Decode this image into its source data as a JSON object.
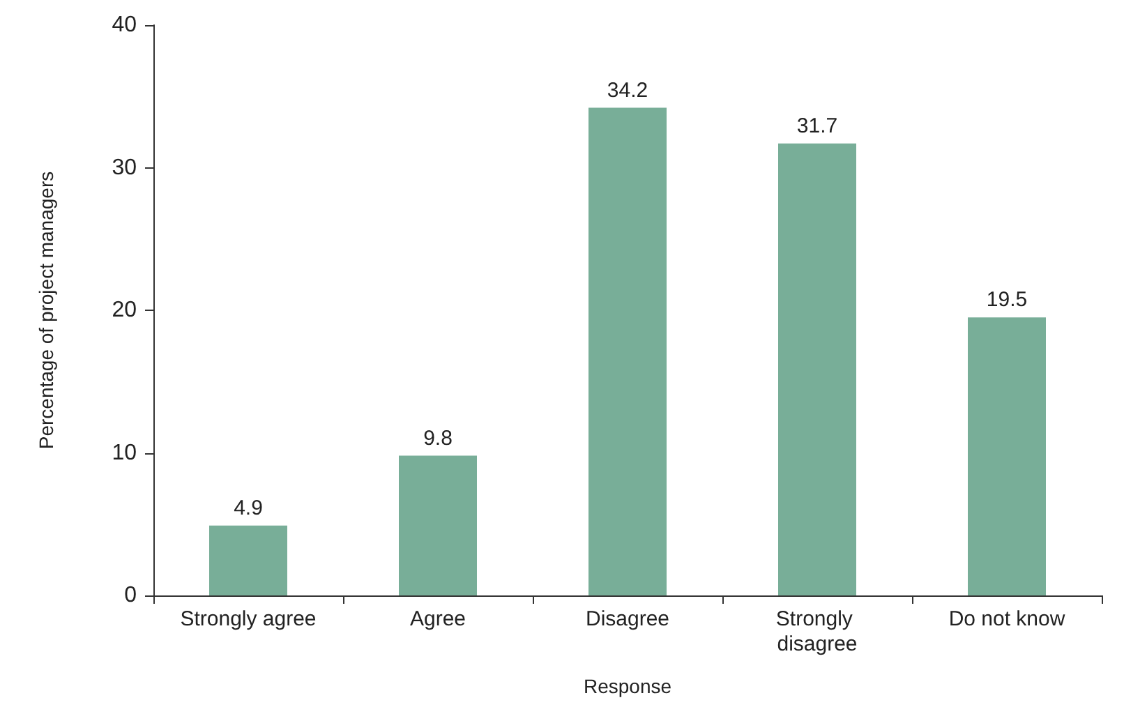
{
  "chart_data": {
    "type": "bar",
    "xlabel": "Response",
    "ylabel": "Percentage of project managers",
    "categories": [
      "Strongly agree",
      "Agree",
      "Disagree",
      "Strongly disagree",
      "Do not know"
    ],
    "values": [
      4.9,
      9.8,
      34.2,
      31.7,
      19.5
    ],
    "color": "#78ae98",
    "data_labels": true,
    "ylim": [
      0,
      40
    ],
    "yticks": [
      0,
      10,
      20,
      30,
      40
    ],
    "grid": false
  }
}
